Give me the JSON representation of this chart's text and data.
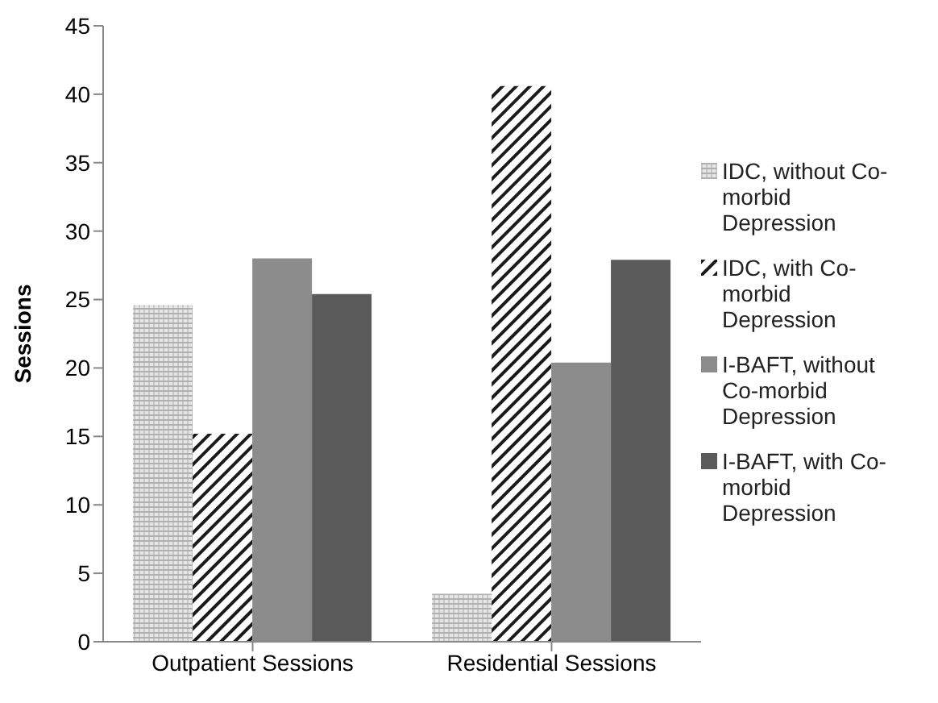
{
  "chart_data": {
    "type": "bar",
    "ylabel": "Sessions",
    "categories": [
      "Outpatient Sessions",
      "Residential Sessions"
    ],
    "series": [
      {
        "name": "IDC, without Co-morbid Depression",
        "color": "#c8c8c8",
        "values": [
          24.6,
          3.5
        ]
      },
      {
        "name": "IDC, with Co-morbid Depression",
        "color": "#1a1a1a",
        "values": [
          15.2,
          40.6
        ]
      },
      {
        "name": "I-BAFT, without Co-morbid Depression",
        "color": "#8c8c8c",
        "values": [
          28,
          20.4
        ]
      },
      {
        "name": "I-BAFT, with Co-morbid Depression",
        "color": "#5a5a5a",
        "values": [
          25.4,
          27.9
        ]
      }
    ],
    "ylim": [
      0,
      45
    ],
    "yticks": [
      0,
      5,
      10,
      15,
      20,
      25,
      30,
      35,
      40,
      45
    ],
    "grid": false,
    "legend": "right"
  }
}
